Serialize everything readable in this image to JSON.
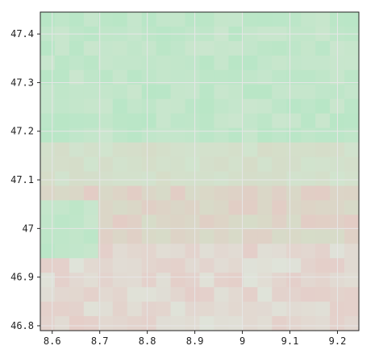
{
  "map": {
    "x_axis": {
      "tick_labels": [
        "8.6",
        "8.7",
        "8.8",
        "8.9",
        "9",
        "9.1",
        "9.2"
      ],
      "tick_values": [
        8.6,
        8.7,
        8.8,
        8.9,
        9.0,
        9.1,
        9.2
      ],
      "range": [
        8.575,
        9.245
      ]
    },
    "y_axis": {
      "tick_labels": [
        "47.4",
        "47.3",
        "47.2",
        "47.1",
        "47",
        "46.9",
        "46.8"
      ],
      "tick_values": [
        47.4,
        47.3,
        47.2,
        47.1,
        47.0,
        46.9,
        46.8
      ],
      "range": [
        46.79,
        47.445
      ]
    },
    "grid": true,
    "raster": {
      "columns": 22,
      "rows": 22,
      "description_colors": {
        "green": "#b8e6c6",
        "pale_green": "#cfe6d0",
        "beige": "#d6dcc8",
        "pink": "#e6c8c4",
        "light": "#dfe3d9"
      },
      "grid_color": "#e6e6e6",
      "frame_color": "#222222"
    }
  }
}
